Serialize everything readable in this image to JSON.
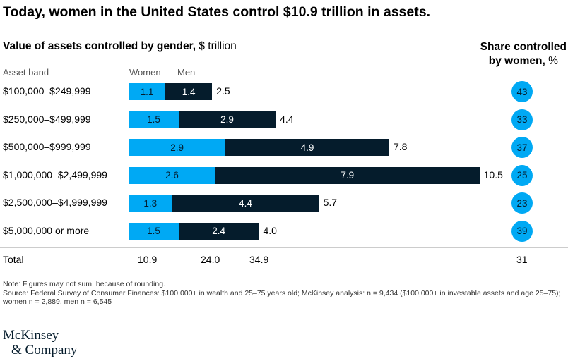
{
  "title": "Today, women in the United States control $10.9 trillion in assets.",
  "subtitle_bold": "Value of assets controlled by gender,",
  "subtitle_unit": "$ trillion",
  "share_header_line1": "Share controlled",
  "share_header_line2": "by women,",
  "share_header_unit": "%",
  "chart_data": {
    "type": "bar",
    "stacked": true,
    "orientation": "horizontal",
    "category_header": "Asset band",
    "categories": [
      "$100,000–$249,999",
      "$250,000–$499,999",
      "$500,000–$999,999",
      "$1,000,000–$2,499,999",
      "$2,500,000–$4,999,999",
      "$5,000,000 or more"
    ],
    "series": [
      {
        "name": "Women",
        "color": "#00A9F4",
        "values": [
          1.1,
          1.5,
          2.9,
          2.6,
          1.3,
          1.5
        ]
      },
      {
        "name": "Men",
        "color": "#051C2C",
        "values": [
          1.4,
          2.9,
          4.9,
          7.9,
          4.4,
          2.4
        ]
      }
    ],
    "totals": [
      2.5,
      4.4,
      7.8,
      10.5,
      5.7,
      4.0
    ],
    "totals_labels": [
      "2.5",
      "4.4",
      "7.8",
      "10.5",
      "5.7",
      "4.0"
    ],
    "share_women": [
      43,
      33,
      37,
      25,
      23,
      39
    ],
    "total_row": {
      "label": "Total",
      "women": "10.9",
      "men": "24.0",
      "total": "34.9",
      "share": "31"
    }
  },
  "notes": {
    "note": "Note: Figures may not sum, because of rounding.",
    "source": "Source: Federal Survey of Consumer Finances: $100,000+ in wealth and 25–75 years old; McKinsey analysis: n = 9,434 ($100,000+ in investable assets and age 25–75); women n = 2,889, men n = 6,545"
  },
  "logo": {
    "line1": "McKinsey",
    "line2": "& Company"
  }
}
